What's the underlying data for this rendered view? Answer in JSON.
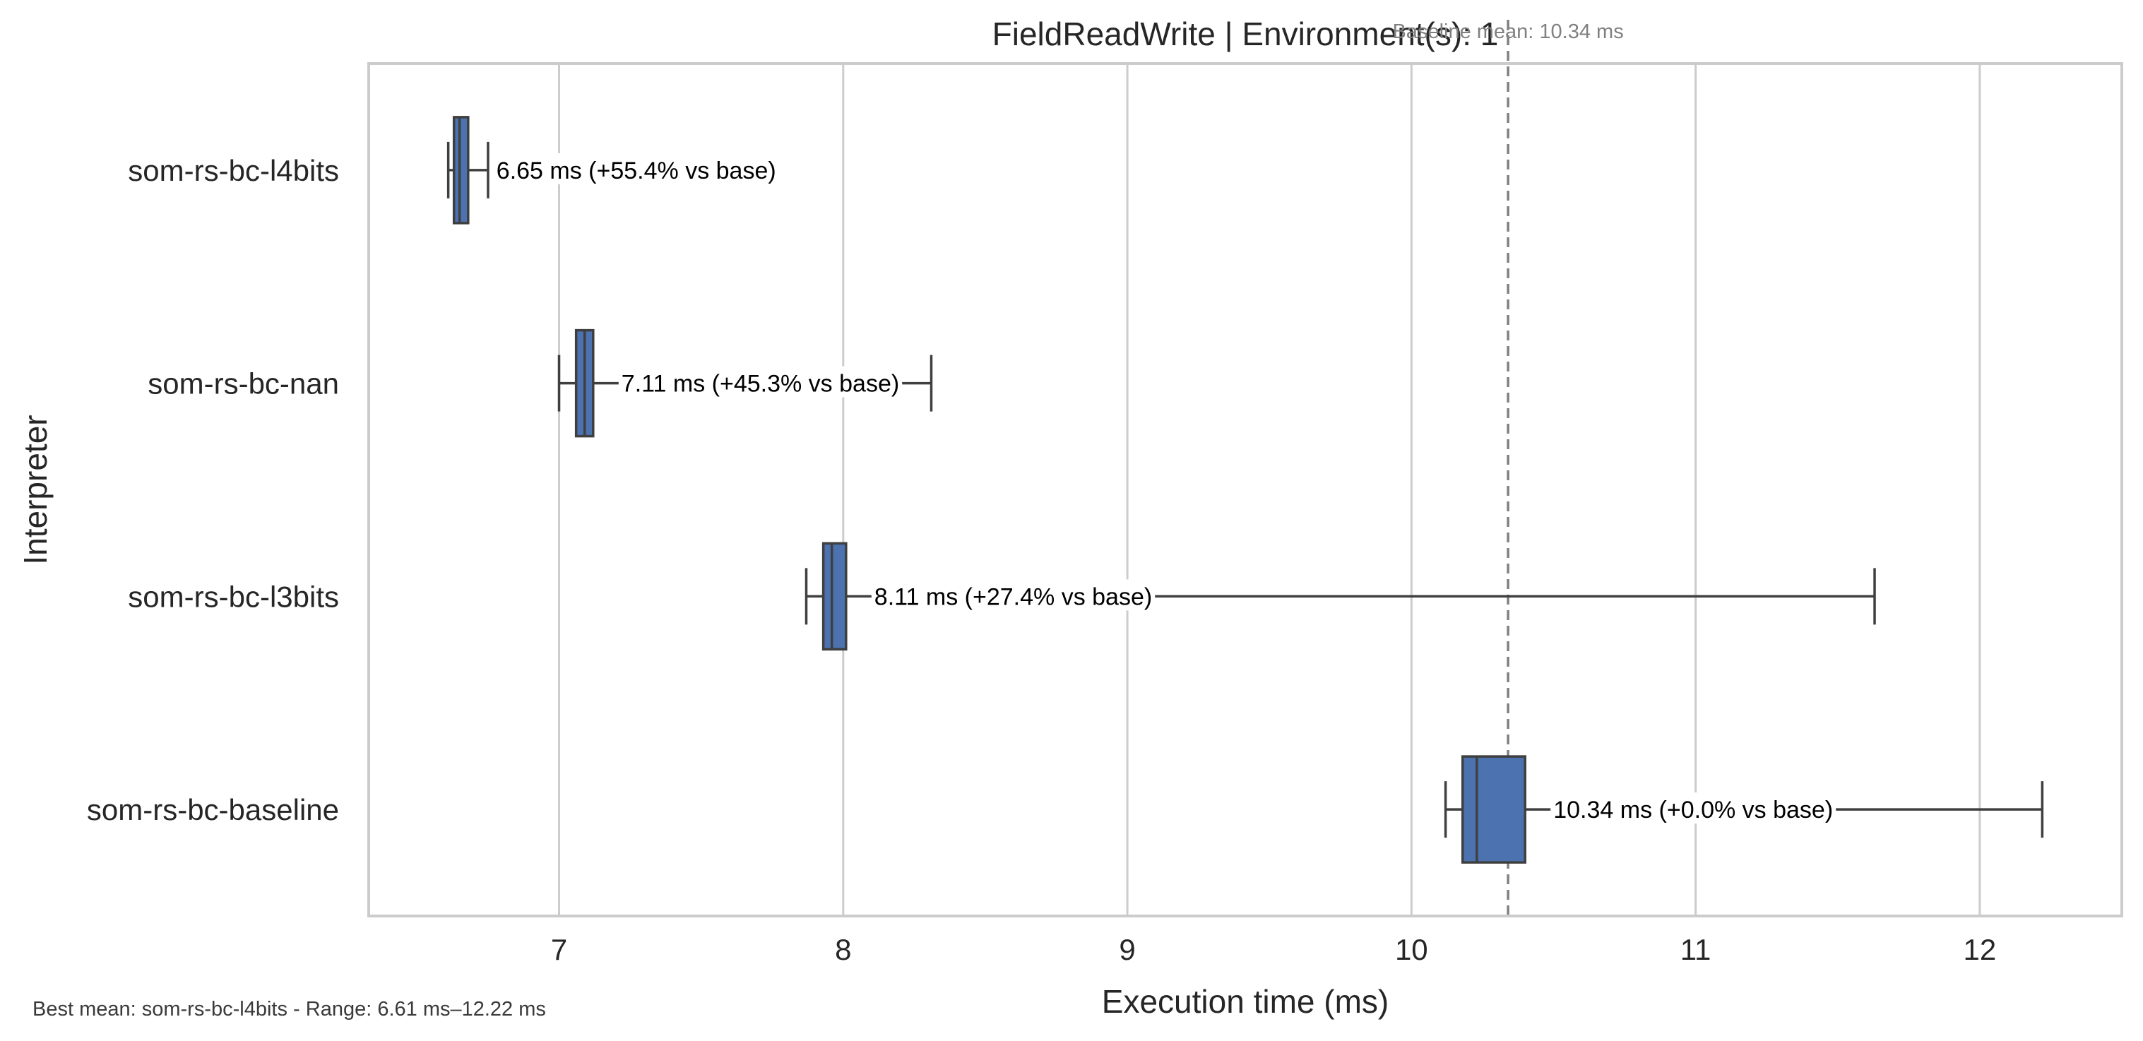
{
  "chart_data": {
    "type": "boxplot",
    "orientation": "horizontal",
    "title": "FieldReadWrite | Environment(s): 1",
    "xlabel": "Execution time (ms)",
    "ylabel": "Interpreter",
    "xlim": [
      6.33,
      12.5
    ],
    "xticks": [
      7,
      8,
      9,
      10,
      11,
      12
    ],
    "grid": "vertical",
    "baseline": {
      "value": 10.34,
      "label": "Baseline mean: 10.34 ms",
      "color": "#808080",
      "style": "dashed"
    },
    "box_color": "#4c72b0",
    "series": [
      {
        "name": "som-rs-bc-l4bits",
        "whisker_low": 6.61,
        "q1": 6.63,
        "median": 6.65,
        "q3": 6.68,
        "whisker_high": 6.75,
        "mean_label": "6.65 ms  (+55.4% vs base)"
      },
      {
        "name": "som-rs-bc-nan",
        "whisker_low": 7.0,
        "q1": 7.06,
        "median": 7.09,
        "q3": 7.12,
        "whisker_high": 8.31,
        "mean_label": "7.11 ms  (+45.3% vs base)"
      },
      {
        "name": "som-rs-bc-l3bits",
        "whisker_low": 7.87,
        "q1": 7.93,
        "median": 7.96,
        "q3": 8.01,
        "whisker_high": 11.63,
        "mean_label": "8.11 ms  (+27.4% vs base)"
      },
      {
        "name": "som-rs-bc-baseline",
        "whisker_low": 10.12,
        "q1": 10.18,
        "median": 10.23,
        "q3": 10.4,
        "whisker_high": 12.22,
        "mean_label": "10.34 ms  (+0.0% vs base)"
      }
    ],
    "footer": "Best mean: som-rs-bc-l4bits - Range: 6.61 ms–12.22 ms"
  }
}
